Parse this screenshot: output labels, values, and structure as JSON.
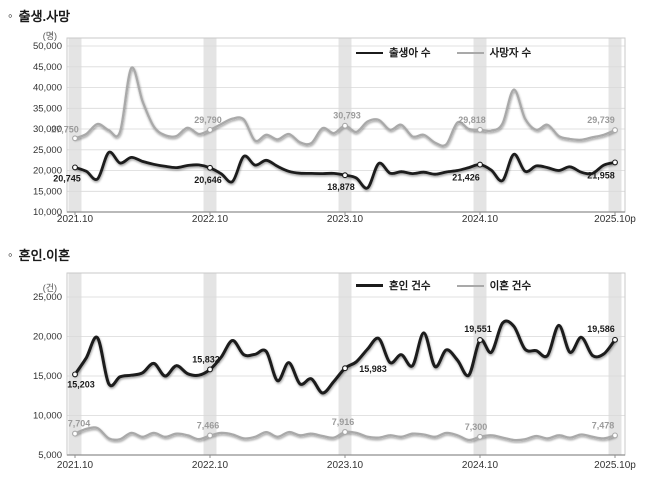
{
  "bullet_char": "◦",
  "chart_data": [
    {
      "type": "line",
      "title": "출생.사망",
      "unit_label": "(명)",
      "ylim": [
        10000,
        50000
      ],
      "ytick_step": 5000,
      "grid": true,
      "legend_position": "top-center-inside",
      "xticks": [
        "2021.10",
        "2022.10",
        "2023.10",
        "2024.10",
        "2025.10p"
      ],
      "xtick_month_index": [
        0,
        12,
        24,
        36,
        48
      ],
      "x_range": "2021.10 ~ 2025.10 monthly",
      "series": [
        {
          "name": "출생아 수",
          "color": "#1b1b1b",
          "label_color": "#1b1b1b",
          "width": 2.8,
          "values": [
            20745,
            19800,
            17970,
            24350,
            21800,
            23150,
            22200,
            21500,
            21000,
            20700,
            21200,
            21350,
            20646,
            19200,
            17350,
            23400,
            21300,
            22450,
            21000,
            19800,
            19350,
            19300,
            19250,
            19300,
            18878,
            18200,
            15800,
            21700,
            19350,
            19700,
            19250,
            19600,
            19100,
            19650,
            20000,
            20700,
            21426,
            20100,
            17600,
            23900,
            19800,
            21100,
            20700,
            20000,
            20900,
            19600,
            19300,
            21300,
            21958
          ],
          "point_labels": [
            {
              "i": 0,
              "text": "20,745",
              "dx": -8,
              "dy": 14
            },
            {
              "i": 12,
              "text": "20,646",
              "dx": -2,
              "dy": 15
            },
            {
              "i": 24,
              "text": "18,878",
              "dx": -4,
              "dy": 15
            },
            {
              "i": 36,
              "text": "21,426",
              "dx": -14,
              "dy": 16
            },
            {
              "i": 48,
              "text": "21,958",
              "dx": -14,
              "dy": 16
            }
          ]
        },
        {
          "name": "사망자 수",
          "color": "#a9a9a9",
          "label_color": "#9b9b9b",
          "width": 2.3,
          "values": [
            27750,
            28800,
            31200,
            29700,
            29300,
            44700,
            36700,
            30600,
            28500,
            28300,
            30300,
            28800,
            29790,
            31200,
            32500,
            32300,
            27200,
            28600,
            27500,
            28800,
            26800,
            26600,
            30200,
            29000,
            30793,
            29300,
            31800,
            32200,
            29800,
            31000,
            28200,
            28600,
            26700,
            26300,
            31600,
            30000,
            29818,
            29600,
            31300,
            39500,
            32500,
            29800,
            31000,
            28300,
            27600,
            27400,
            28000,
            28600,
            29739
          ],
          "point_labels": [
            {
              "i": 0,
              "text": "27,750",
              "dx": -10,
              "dy": -6
            },
            {
              "i": 12,
              "text": "29,790",
              "dx": -2,
              "dy": -7
            },
            {
              "i": 24,
              "text": "30,793",
              "dx": 2,
              "dy": -7
            },
            {
              "i": 36,
              "text": "29,818",
              "dx": -8,
              "dy": -7
            },
            {
              "i": 48,
              "text": "29,739",
              "dx": -14,
              "dy": -7
            }
          ]
        }
      ]
    },
    {
      "type": "line",
      "title": "혼인.이혼",
      "unit_label": "(건)",
      "ylim": [
        5000,
        25000
      ],
      "ytick_step": 5000,
      "grid": true,
      "legend_position": "top-center-inside",
      "xticks": [
        "2021.10",
        "2022.10",
        "2023.10",
        "2024.10",
        "2025.10p"
      ],
      "xtick_month_index": [
        0,
        12,
        24,
        36,
        48
      ],
      "x_range": "2021.10 ~ 2025.10 monthly",
      "series": [
        {
          "name": "혼인 건수",
          "color": "#1b1b1b",
          "label_color": "#1b1b1b",
          "width": 3,
          "values": [
            15203,
            17300,
            19850,
            14000,
            14900,
            15100,
            15400,
            16600,
            15000,
            16300,
            15300,
            15100,
            15832,
            17400,
            19500,
            17700,
            17750,
            18100,
            14400,
            16700,
            14000,
            14650,
            12850,
            14300,
            15983,
            16800,
            18400,
            19750,
            16700,
            17700,
            16300,
            20450,
            16200,
            18300,
            17000,
            15100,
            19551,
            18000,
            21700,
            21300,
            18400,
            18200,
            17600,
            21400,
            18000,
            19900,
            17600,
            17800,
            19586
          ],
          "point_labels": [
            {
              "i": 0,
              "text": "15,203",
              "dx": 6,
              "dy": 13
            },
            {
              "i": 12,
              "text": "15,832",
              "dx": -4,
              "dy": -7
            },
            {
              "i": 24,
              "text": "15,983",
              "dx": 28,
              "dy": 4
            },
            {
              "i": 36,
              "text": "19,551",
              "dx": -2,
              "dy": -8
            },
            {
              "i": 48,
              "text": "19,586",
              "dx": -14,
              "dy": -8
            }
          ]
        },
        {
          "name": "이혼 건수",
          "color": "#a9a9a9",
          "label_color": "#9b9b9b",
          "width": 2.3,
          "values": [
            7704,
            8300,
            8400,
            7100,
            7000,
            7800,
            7300,
            7800,
            7300,
            7700,
            7500,
            7000,
            7466,
            7800,
            7600,
            7100,
            7300,
            7900,
            7300,
            7900,
            7500,
            7700,
            7400,
            7200,
            7916,
            7800,
            7300,
            7200,
            7500,
            7300,
            7700,
            7600,
            7300,
            7800,
            7500,
            6900,
            7300,
            7500,
            7200,
            6900,
            7000,
            7400,
            7100,
            7500,
            7200,
            7600,
            7300,
            7100,
            7478
          ],
          "point_labels": [
            {
              "i": 0,
              "text": "7,704",
              "dx": 4,
              "dy": -7
            },
            {
              "i": 12,
              "text": "7,466",
              "dx": -2,
              "dy": -7
            },
            {
              "i": 24,
              "text": "7,916",
              "dx": -2,
              "dy": -7
            },
            {
              "i": 36,
              "text": "7,300",
              "dx": -4,
              "dy": -7
            },
            {
              "i": 48,
              "text": "7,478",
              "dx": -12,
              "dy": -7
            }
          ]
        }
      ]
    }
  ],
  "style": {
    "band_color": "#e4e4e4",
    "gridline_color": "#d9d9d9",
    "border_color": "#c9c9c9",
    "axis_color": "#8f8f8f",
    "tick_label_color": "#333333",
    "unit_label_color": "#555555"
  }
}
